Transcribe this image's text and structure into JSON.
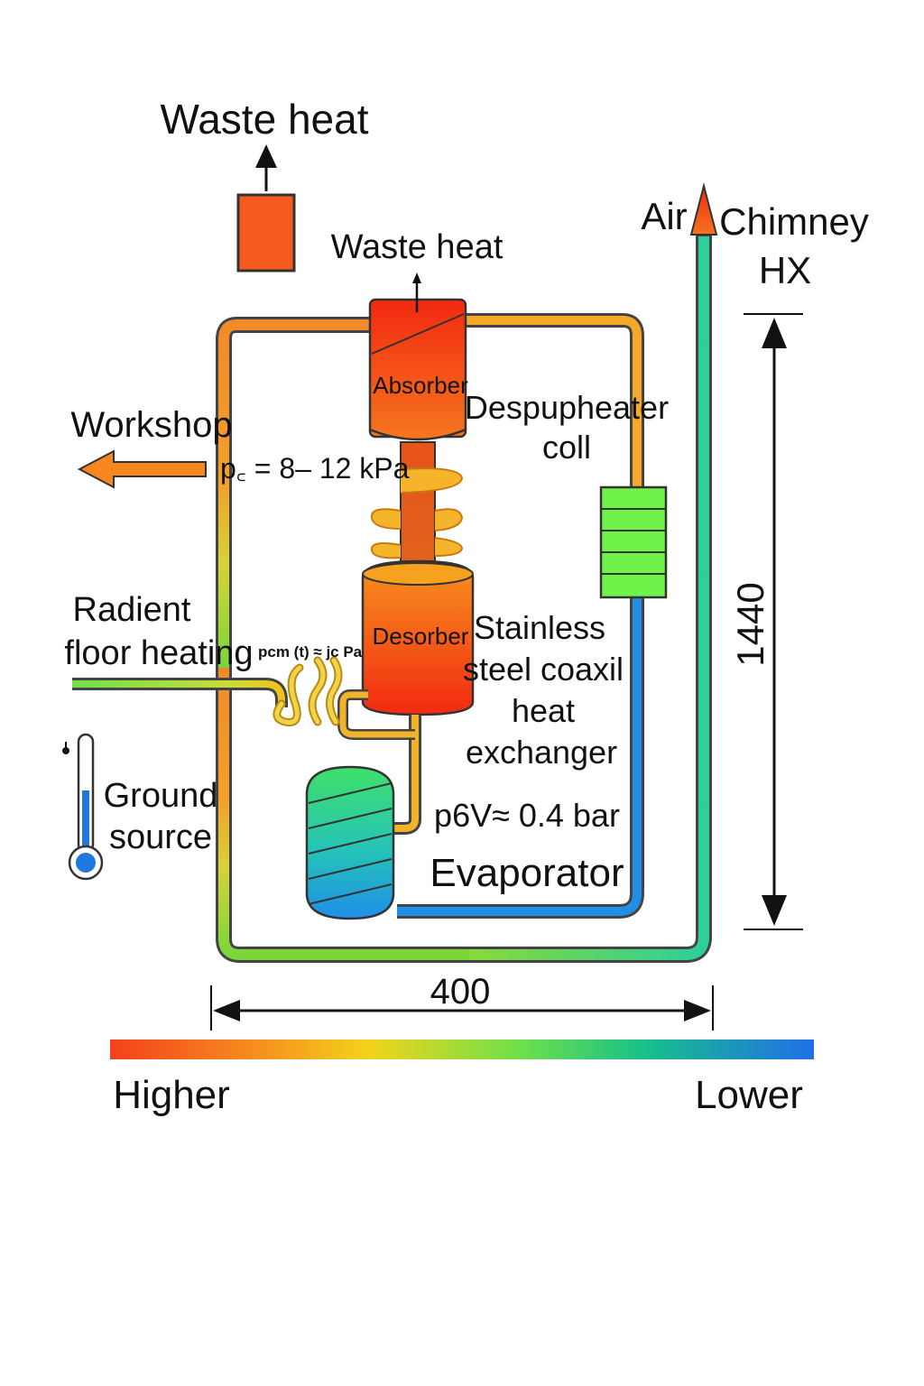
{
  "labels": {
    "waste_heat_top": "Waste heat",
    "waste_heat_absorber": "Waste heat",
    "air": "Air",
    "chimney_l1": "Chimney",
    "chimney_l2": "HX",
    "absorber": "Absorber",
    "desuperheater_l1": "Despupheater",
    "desuperheater_l2": "coll",
    "workshop": "Workshop",
    "pressure_high": "p꜀ = 8– 12 kPa",
    "radiant_l1": "Radient",
    "radiant_l2": "floor heating",
    "pressure_mid": "pcm (t) ≈ jc Pa",
    "desorber": "Desorber",
    "hx_l1": "Stainless",
    "hx_l2": "steel coaxil",
    "hx_l3": "heat",
    "hx_l4": "exchanger",
    "ground_l1": "Ground",
    "ground_l2": "source",
    "pressure_low": "p6V≈ 0.4 bar",
    "evaporator": "Evaporator",
    "dim_height": "1440",
    "dim_width": "400",
    "scale_high": "Higher",
    "scale_low": "Lower"
  },
  "colors": {
    "hot": "#f4401c",
    "warm": "#f7931e",
    "mid": "#f2c21b",
    "green": "#6fe04a",
    "cool": "#1f8fe8"
  },
  "icons": {
    "thermometer": "thermometer-icon",
    "arrow_up": "arrow-up-icon",
    "arrow_left": "arrow-left-icon"
  }
}
